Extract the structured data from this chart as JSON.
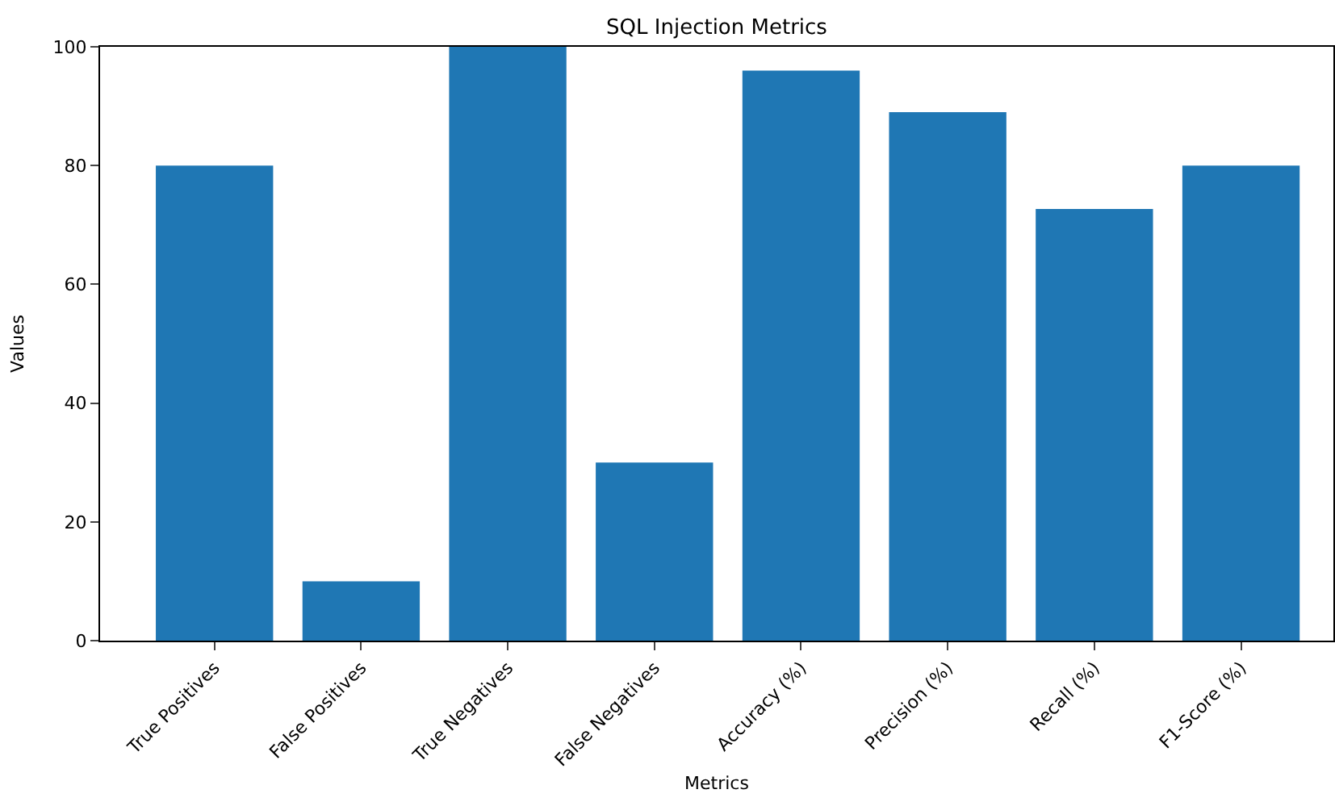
{
  "chart_data": {
    "type": "bar",
    "title": "SQL Injection Metrics",
    "xlabel": "Metrics",
    "ylabel": "Values",
    "categories": [
      "True Positives",
      "False Positives",
      "True Negatives",
      "False Negatives",
      "Accuracy (%)",
      "Precision (%)",
      "Recall (%)",
      "F1-Score (%)"
    ],
    "values": [
      80,
      10,
      100,
      30,
      96,
      89,
      72.7,
      80
    ],
    "color": "#1f77b4",
    "ylim": [
      0,
      100
    ],
    "yticks": [
      0,
      20,
      40,
      60,
      80,
      100
    ],
    "legend": false
  }
}
